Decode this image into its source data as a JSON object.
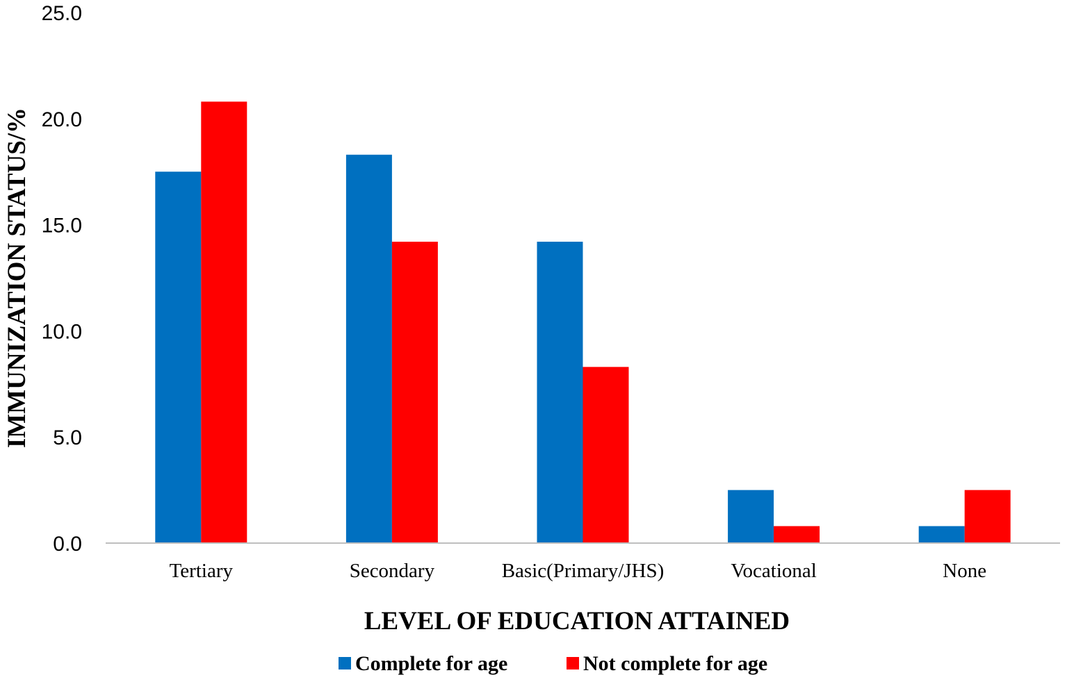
{
  "chart_data": {
    "type": "bar",
    "title": "",
    "xlabel": "LEVEL OF EDUCATION ATTAINED",
    "ylabel": "IMMUNIZATION STATUS/%",
    "categories": [
      "Tertiary",
      "Secondary",
      "Basic(Primary/JHS)",
      "Vocational",
      "None"
    ],
    "series": [
      {
        "name": "Complete for age",
        "color": "#0070c0",
        "values": [
          17.5,
          18.3,
          14.2,
          2.5,
          0.8
        ]
      },
      {
        "name": "Not complete for age",
        "color": "#ff0000",
        "values": [
          20.8,
          14.2,
          8.3,
          0.8,
          2.5
        ]
      }
    ],
    "ylim": [
      0,
      25
    ],
    "yticks": [
      "0.0",
      "5.0",
      "10.0",
      "15.0",
      "20.0",
      "25.0"
    ],
    "ytick_values": [
      0,
      5,
      10,
      15,
      20,
      25
    ],
    "grid": false,
    "legend_position": "bottom"
  }
}
